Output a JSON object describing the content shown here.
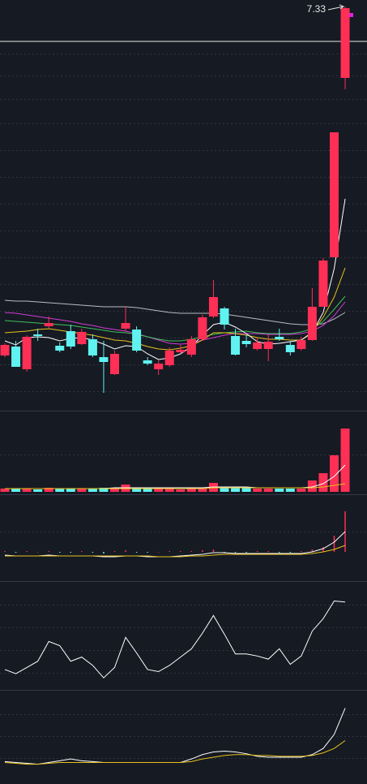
{
  "chart_data": [
    {
      "type": "candlestick",
      "ylim": [
        2.36,
        7.41
      ],
      "up_color": "#ff2f55",
      "down_color": "#5ff2f0",
      "open": [
        3.03,
        3.14,
        2.86,
        3.29,
        3.39,
        3.15,
        3.33,
        3.17,
        3.23,
        3.01,
        2.8,
        3.36,
        3.35,
        2.97,
        2.86,
        2.91,
        3.07,
        3.04,
        3.23,
        3.51,
        3.61,
        3.27,
        3.21,
        3.11,
        3.11,
        3.26,
        3.16,
        3.11,
        3.22,
        3.63,
        4.24,
        6.45
      ],
      "high": [
        3.18,
        3.21,
        3.28,
        3.36,
        3.51,
        3.19,
        3.41,
        3.36,
        3.29,
        3.21,
        3.09,
        3.63,
        3.39,
        3.01,
        2.97,
        3.13,
        3.16,
        3.27,
        3.53,
        3.96,
        3.63,
        3.36,
        3.29,
        3.25,
        3.29,
        3.36,
        3.21,
        3.26,
        3.86,
        4.23,
        5.78,
        7.33
      ],
      "low": [
        3.01,
        2.89,
        2.83,
        3.21,
        3.36,
        3.07,
        3.11,
        3.16,
        3.01,
        2.57,
        2.79,
        3.33,
        3.07,
        2.91,
        2.79,
        2.89,
        3.05,
        3.01,
        3.21,
        3.49,
        3.35,
        3.03,
        3.13,
        3.09,
        2.96,
        3.21,
        3.03,
        3.09,
        3.21,
        3.63,
        4.24,
        6.31
      ],
      "close": [
        3.16,
        2.89,
        3.26,
        3.27,
        3.43,
        3.09,
        3.14,
        3.32,
        3.03,
        2.95,
        3.05,
        3.43,
        3.09,
        2.93,
        2.93,
        3.09,
        3.1,
        3.23,
        3.5,
        3.75,
        3.41,
        3.04,
        3.17,
        3.19,
        3.2,
        3.23,
        3.07,
        3.22,
        3.63,
        4.2,
        5.78,
        7.31
      ],
      "price_line": 6.9,
      "lines": [
        {
          "color": "#b9bcc4",
          "values": [
            3.71,
            3.7,
            3.7,
            3.69,
            3.68,
            3.67,
            3.66,
            3.65,
            3.64,
            3.63,
            3.63,
            3.63,
            3.62,
            3.6,
            3.58,
            3.56,
            3.55,
            3.55,
            3.55,
            3.55,
            3.54,
            3.52,
            3.5,
            3.48,
            3.46,
            3.44,
            3.42,
            3.41,
            3.41,
            3.42,
            3.48,
            3.56
          ]
        },
        {
          "color": "#d23cd6",
          "values": [
            3.56,
            3.55,
            3.53,
            3.51,
            3.49,
            3.47,
            3.45,
            3.42,
            3.4,
            3.37,
            3.35,
            3.33,
            3.3,
            3.26,
            3.22,
            3.18,
            3.17,
            3.18,
            3.22,
            3.25,
            3.28,
            3.3,
            3.3,
            3.3,
            3.29,
            3.29,
            3.29,
            3.3,
            3.33,
            3.4,
            3.52,
            3.69
          ]
        },
        {
          "color": "#3fbf5a",
          "values": [
            3.46,
            3.45,
            3.44,
            3.43,
            3.42,
            3.41,
            3.4,
            3.38,
            3.36,
            3.34,
            3.32,
            3.31,
            3.29,
            3.26,
            3.23,
            3.21,
            3.21,
            3.23,
            3.26,
            3.29,
            3.31,
            3.32,
            3.33,
            3.31,
            3.3,
            3.3,
            3.3,
            3.32,
            3.36,
            3.45,
            3.6,
            3.76
          ]
        },
        {
          "color": "#e8c21c",
          "values": [
            3.31,
            3.32,
            3.33,
            3.35,
            3.36,
            3.34,
            3.32,
            3.3,
            3.28,
            3.25,
            3.22,
            3.21,
            3.18,
            3.14,
            3.11,
            3.1,
            3.12,
            3.15,
            3.22,
            3.31,
            3.31,
            3.3,
            3.28,
            3.25,
            3.23,
            3.23,
            3.22,
            3.22,
            3.32,
            3.5,
            3.75,
            4.11
          ]
        },
        {
          "color": "#ffffff",
          "values": [
            3.21,
            3.16,
            3.25,
            3.26,
            3.25,
            3.21,
            3.24,
            3.25,
            3.22,
            3.17,
            3.11,
            3.15,
            3.14,
            3.05,
            2.98,
            3.0,
            3.05,
            3.14,
            3.28,
            3.41,
            3.44,
            3.38,
            3.3,
            3.2,
            3.17,
            3.18,
            3.2,
            3.22,
            3.31,
            3.56,
            4.1,
            4.96
          ]
        }
      ]
    },
    {
      "type": "bar",
      "color_by": "candle",
      "ylim": [
        0,
        100
      ],
      "values": [
        4,
        4,
        4,
        3,
        5,
        4,
        4,
        4,
        4,
        5,
        5,
        9,
        5,
        4,
        4,
        4,
        3,
        4,
        5,
        11,
        6,
        5,
        5,
        4,
        4,
        4,
        4,
        4,
        14,
        23,
        45,
        78
      ],
      "lines": [
        {
          "color": "#ffffff",
          "values": [
            4,
            4,
            4,
            4,
            4,
            4,
            4,
            4,
            4,
            4,
            5,
            5,
            5,
            5,
            5,
            5,
            5,
            5,
            5,
            6,
            6,
            6,
            6,
            5,
            5,
            5,
            5,
            5,
            6,
            10,
            19,
            33
          ]
        },
        {
          "color": "#e8c21c",
          "values": [
            4,
            4,
            4,
            4,
            4,
            4,
            4,
            4,
            4,
            4,
            4,
            4,
            4,
            4,
            4,
            4,
            4,
            4,
            4,
            5,
            5,
            5,
            5,
            5,
            5,
            5,
            5,
            5,
            5,
            6,
            8,
            10
          ]
        }
      ]
    },
    {
      "type": "bar",
      "color_by": "sign",
      "ylim": [
        -35,
        68
      ],
      "values": [
        1,
        -1,
        1,
        0,
        1,
        -1,
        -1,
        1,
        -1,
        -2,
        1,
        2,
        -1,
        -1,
        0,
        1,
        1,
        1,
        2,
        3,
        -1,
        -1,
        -1,
        1,
        1,
        -1,
        -1,
        1,
        3,
        6,
        20,
        50
      ],
      "lines": [
        {
          "color": "#ffffff",
          "values": [
            -4,
            -5,
            -5,
            -5,
            -4,
            -5,
            -5,
            -5,
            -5,
            -6,
            -6,
            -5,
            -5,
            -6,
            -6,
            -6,
            -5,
            -4,
            -3,
            -1,
            -1,
            -2,
            -2,
            -2,
            -2,
            -2,
            -2,
            -2,
            0,
            4,
            12,
            25
          ]
        },
        {
          "color": "#e8c21c",
          "values": [
            -5,
            -5,
            -5,
            -5,
            -5,
            -5,
            -5,
            -5,
            -5,
            -5,
            -5,
            -5,
            -5,
            -5,
            -6,
            -6,
            -6,
            -5,
            -5,
            -4,
            -3,
            -3,
            -3,
            -3,
            -3,
            -3,
            -3,
            -3,
            -2,
            0,
            3,
            8
          ]
        }
      ]
    },
    {
      "type": "line",
      "ylim": [
        0,
        100
      ],
      "lines": [
        {
          "color": "#ffffff",
          "values": [
            18,
            14,
            20,
            26,
            45,
            41,
            26,
            30,
            22,
            10,
            20,
            49,
            34,
            18,
            16,
            22,
            30,
            38,
            53,
            70,
            52,
            33,
            33,
            31,
            28,
            38,
            23,
            31,
            55,
            67,
            84,
            83
          ]
        }
      ]
    },
    {
      "type": "line",
      "ylim": [
        0,
        100
      ],
      "lines": [
        {
          "color": "#ffffff",
          "values": [
            20,
            19,
            18,
            17,
            19,
            21,
            23,
            21,
            20,
            19,
            19,
            19,
            19,
            19,
            19,
            19,
            19,
            23,
            28,
            31,
            32,
            31,
            29,
            26,
            25,
            25,
            25,
            25,
            28,
            35,
            51,
            81
          ]
        },
        {
          "color": "#e8c21c",
          "values": [
            19,
            18,
            17,
            17,
            18,
            19,
            19,
            19,
            19,
            19,
            19,
            19,
            19,
            19,
            19,
            19,
            19,
            20,
            23,
            25,
            27,
            28,
            28,
            27,
            27,
            26,
            26,
            26,
            27,
            30,
            35,
            44
          ]
        }
      ]
    }
  ]
}
